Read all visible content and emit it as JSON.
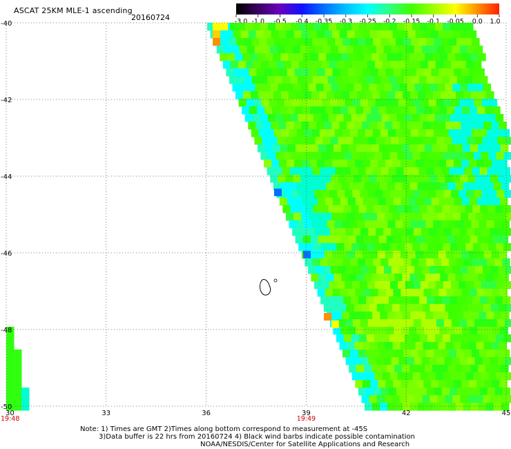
{
  "header": {
    "title": "ASCAT 25KM MLE-1 ascending",
    "date": "20160724"
  },
  "colorbar": {
    "labels": [
      "-3.0",
      "-1.0",
      "-0.5",
      "-0.4",
      "-0.35",
      "-0.3",
      "-0.25",
      "-0.2",
      "-0.15",
      "-0.1",
      "-0.05",
      "0.0",
      "1.0"
    ],
    "colors": [
      "#000000",
      "#3a0060",
      "#6a00c0",
      "#1010ff",
      "#0070ff",
      "#00c0ff",
      "#00ffff",
      "#30ff80",
      "#40ff00",
      "#a0ff00",
      "#ffff00",
      "#ff9000",
      "#ff2000"
    ]
  },
  "map": {
    "x_ticks": [
      "30",
      "33",
      "36",
      "39",
      "42",
      "45"
    ],
    "x_values": [
      30,
      33,
      36,
      39,
      42,
      45
    ],
    "y_ticks": [
      "-40",
      "-42",
      "-44",
      "-46",
      "-48",
      "-50"
    ],
    "y_values": [
      -40,
      -42,
      -44,
      -46,
      -48,
      -50
    ],
    "lon_range": [
      30,
      45
    ],
    "lat_range": [
      -40,
      -50
    ],
    "grid": "dotted",
    "time_labels": [
      {
        "text": "19:48",
        "lon": 30
      },
      {
        "text": "19:49",
        "lon": 39
      }
    ]
  },
  "footer": {
    "line1": "Note: 1) Times are GMT 2)Times along bottom correspond to measurement at -45S",
    "line2": "3)Data buffer is 22 hrs from 20160724 4) Black wind barbs indicate possible contamination",
    "line3": "NOAA/NESDIS/Center for Satellite Applications and Research"
  }
}
